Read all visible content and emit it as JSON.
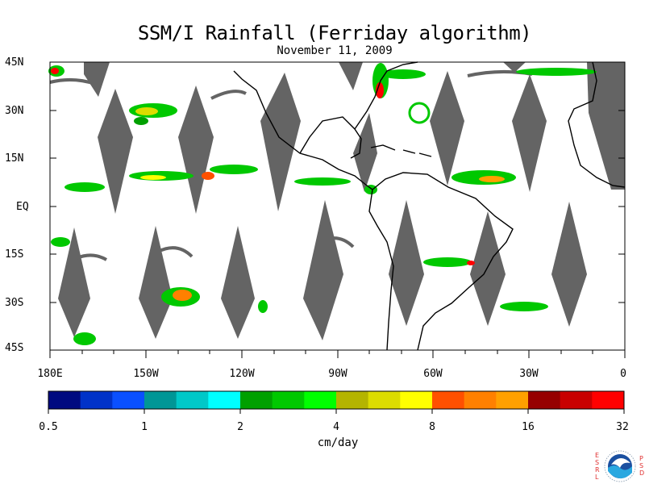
{
  "title": "SSM/I Rainfall (Ferriday algorithm)",
  "date": "November 11, 2009",
  "lat_labels": [
    "45N",
    "30N",
    "15N",
    "EQ",
    "15S",
    "30S",
    "45S"
  ],
  "lon_labels": [
    "180E",
    "150W",
    "120W",
    "90W",
    "60W",
    "30W",
    "0"
  ],
  "colorbar": {
    "colors": [
      "#000a80",
      "#0032c8",
      "#0a50ff",
      "#009696",
      "#00c8c8",
      "#00ffff",
      "#00a000",
      "#00c800",
      "#00ff00",
      "#b4b400",
      "#dcdc00",
      "#ffff00",
      "#ff5000",
      "#ff8000",
      "#ffa000",
      "#960000",
      "#c80000",
      "#ff0000"
    ],
    "tick_labels": [
      "0.5",
      "1",
      "2",
      "4",
      "8",
      "16",
      "32"
    ],
    "units": "cm/day"
  },
  "logo": {
    "left_letters": [
      "E",
      "S",
      "R",
      "L"
    ],
    "right_letters": [
      "P",
      "S",
      "D"
    ],
    "center_text": "NOAA"
  },
  "colors": {
    "land_outline": "#000000",
    "missing_swath": "#646464",
    "background": "#ffffff"
  }
}
